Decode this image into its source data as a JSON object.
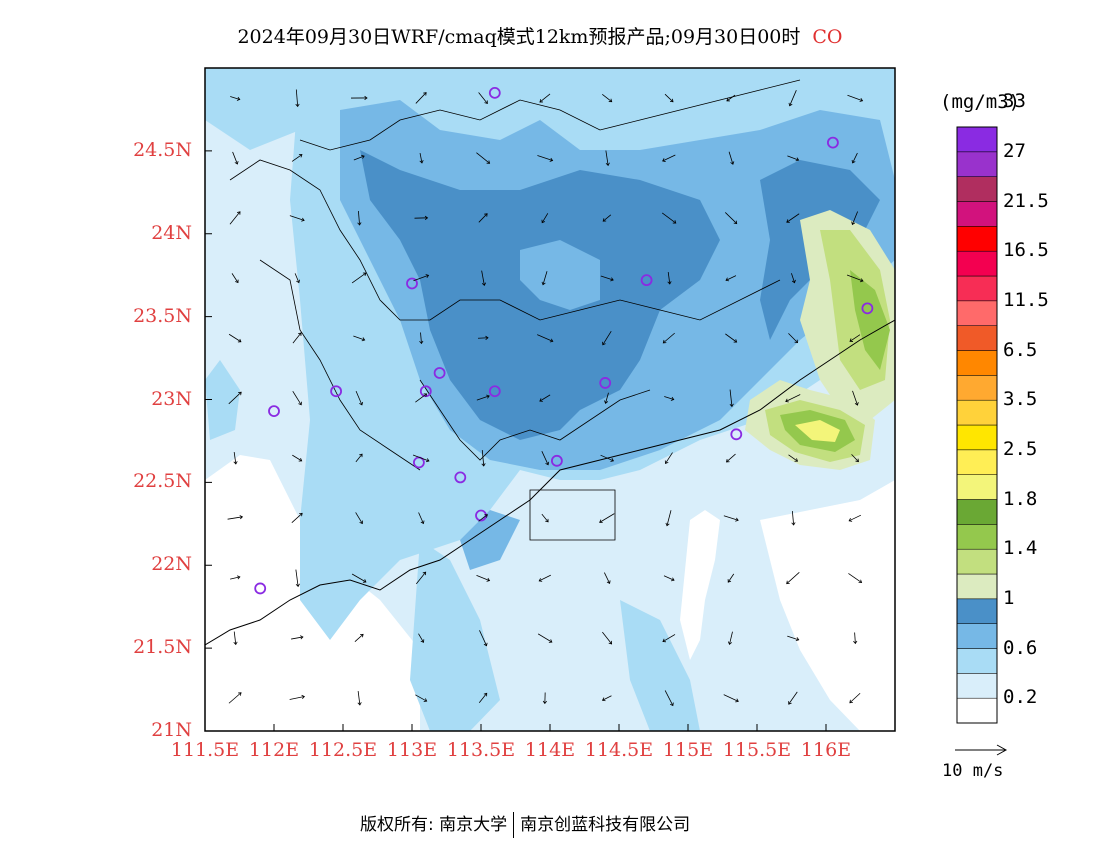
{
  "title": {
    "text": "2024年09月30日WRF/cmaq模式12km预报产品;09月30日00时",
    "species": "CO"
  },
  "map": {
    "lon_range": [
      111.5,
      116.5
    ],
    "lat_range": [
      21,
      25
    ],
    "lat_ticks": [
      {
        "value": 24.5,
        "label": "24.5N"
      },
      {
        "value": 24,
        "label": "24N"
      },
      {
        "value": 23.5,
        "label": "23.5N"
      },
      {
        "value": 23,
        "label": "23N"
      },
      {
        "value": 22.5,
        "label": "22.5N"
      },
      {
        "value": 22,
        "label": "22N"
      },
      {
        "value": 21.5,
        "label": "21.5N"
      },
      {
        "value": 21,
        "label": "21N"
      }
    ],
    "lon_ticks": [
      {
        "value": 111.5,
        "label": "111.5E"
      },
      {
        "value": 112,
        "label": "112E"
      },
      {
        "value": 112.5,
        "label": "112.5E"
      },
      {
        "value": 113,
        "label": "113E"
      },
      {
        "value": 113.5,
        "label": "113.5E"
      },
      {
        "value": 114,
        "label": "114E"
      },
      {
        "value": 114.5,
        "label": "114.5E"
      },
      {
        "value": 115,
        "label": "115E"
      },
      {
        "value": 115.5,
        "label": "115.5E"
      },
      {
        "value": 116,
        "label": "116E"
      }
    ],
    "stations": [
      [
        113.6,
        24.85
      ],
      [
        116.05,
        24.55
      ],
      [
        113.0,
        23.7
      ],
      [
        114.7,
        23.72
      ],
      [
        116.3,
        23.55
      ],
      [
        112.45,
        23.05
      ],
      [
        112.0,
        22.93
      ],
      [
        113.1,
        23.05
      ],
      [
        113.2,
        23.16
      ],
      [
        113.6,
        23.05
      ],
      [
        114.4,
        23.1
      ],
      [
        113.05,
        22.62
      ],
      [
        113.35,
        22.53
      ],
      [
        114.05,
        22.63
      ],
      [
        115.35,
        22.79
      ],
      [
        113.5,
        22.3
      ],
      [
        111.9,
        21.86
      ]
    ],
    "wind_reference": "10  m/s"
  },
  "colorbar": {
    "unit": "(mg/m3)",
    "colors": [
      "#ffffff",
      "#d9eefa",
      "#a9dcf5",
      "#76b8e6",
      "#4a90c8",
      "#dcebc0",
      "#c2df7f",
      "#94c84d",
      "#6aa834",
      "#f3f57a",
      "#ffee55",
      "#ffe600",
      "#ffd23a",
      "#ffa930",
      "#ff8700",
      "#f05a28",
      "#ff6a6a",
      "#f72d55",
      "#f30050",
      "#ff0000",
      "#d2127d",
      "#b02e5f",
      "#9932cc",
      "#8a2be2"
    ],
    "labels": [
      "0.2",
      "0.6",
      "1",
      "1.4",
      "1.8",
      "2.5",
      "3.5",
      "6.5",
      "11.5",
      "16.5",
      "21.5",
      "27",
      "33"
    ]
  },
  "footer": {
    "left": "版权所有: 南京大学",
    "right": "南京创蓝科技有限公司"
  }
}
